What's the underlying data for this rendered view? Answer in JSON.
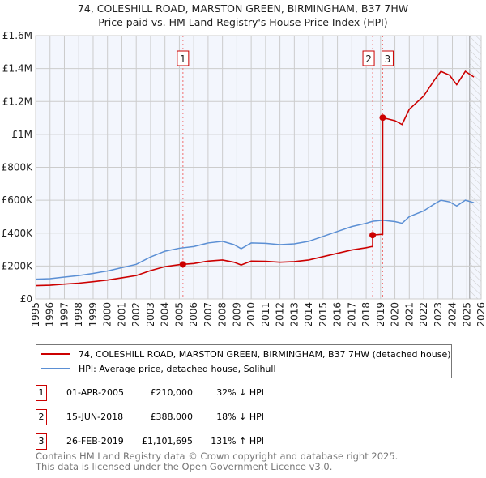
{
  "title": "74, COLESHILL ROAD, MARSTON GREEN, BIRMINGHAM, B37 7HW",
  "subtitle": "Price paid vs. HM Land Registry's House Price Index (HPI)",
  "chart_data": {
    "type": "line",
    "xlim": [
      1995,
      2026
    ],
    "ylim": [
      0,
      1600000
    ],
    "yticks": [
      {
        "v": 0,
        "l": "£0"
      },
      {
        "v": 200000,
        "l": "£200K"
      },
      {
        "v": 400000,
        "l": "£400K"
      },
      {
        "v": 600000,
        "l": "£600K"
      },
      {
        "v": 800000,
        "l": "£800K"
      },
      {
        "v": 1000000,
        "l": "£1M"
      },
      {
        "v": 1200000,
        "l": "£1.2M"
      },
      {
        "v": 1400000,
        "l": "£1.4M"
      },
      {
        "v": 1600000,
        "l": "£1.6M"
      }
    ],
    "xticks": [
      "1995",
      "1996",
      "1997",
      "1998",
      "1999",
      "2000",
      "2001",
      "2002",
      "2003",
      "2004",
      "2005",
      "2006",
      "2007",
      "2008",
      "2009",
      "2010",
      "2011",
      "2012",
      "2013",
      "2014",
      "2015",
      "2016",
      "2017",
      "2018",
      "2019",
      "2020",
      "2021",
      "2022",
      "2023",
      "2024",
      "2025",
      "2026"
    ],
    "hatch_from": 2025.2,
    "hpi_color": "#5b8fd4",
    "price_color": "#cc0000",
    "hpi": [
      [
        1995,
        120000
      ],
      [
        1996,
        123000
      ],
      [
        1997,
        133000
      ],
      [
        1998,
        142000
      ],
      [
        1999,
        155000
      ],
      [
        2000,
        170000
      ],
      [
        2001,
        190000
      ],
      [
        2002,
        210000
      ],
      [
        2003,
        255000
      ],
      [
        2004,
        290000
      ],
      [
        2005,
        308000
      ],
      [
        2006,
        318000
      ],
      [
        2007,
        340000
      ],
      [
        2008,
        350000
      ],
      [
        2008.8,
        330000
      ],
      [
        2009.3,
        305000
      ],
      [
        2010,
        340000
      ],
      [
        2011,
        338000
      ],
      [
        2012,
        330000
      ],
      [
        2013,
        335000
      ],
      [
        2014,
        350000
      ],
      [
        2015,
        380000
      ],
      [
        2016,
        410000
      ],
      [
        2017,
        440000
      ],
      [
        2018,
        460000
      ],
      [
        2018.45,
        472000
      ],
      [
        2019.15,
        478000
      ],
      [
        2020,
        470000
      ],
      [
        2020.5,
        460000
      ],
      [
        2021,
        500000
      ],
      [
        2022,
        535000
      ],
      [
        2022.8,
        580000
      ],
      [
        2023.2,
        600000
      ],
      [
        2023.8,
        590000
      ],
      [
        2024.3,
        565000
      ],
      [
        2024.9,
        600000
      ],
      [
        2025.5,
        585000
      ]
    ],
    "sales": [
      {
        "x": 2005.25,
        "y": 210000,
        "n": "1"
      },
      {
        "x": 2018.45,
        "y": 388000,
        "n": "2"
      },
      {
        "x": 2019.15,
        "y": 1101695,
        "n": "3"
      }
    ]
  },
  "legend": {
    "price": "74, COLESHILL ROAD, MARSTON GREEN, BIRMINGHAM, B37 7HW (detached house)",
    "hpi": "HPI: Average price, detached house, Solihull"
  },
  "transactions": [
    {
      "n": "1",
      "date": "01-APR-2005",
      "price": "£210,000",
      "hpi": "32% ↓ HPI"
    },
    {
      "n": "2",
      "date": "15-JUN-2018",
      "price": "£388,000",
      "hpi": "18% ↓ HPI"
    },
    {
      "n": "3",
      "date": "26-FEB-2019",
      "price": "£1,101,695",
      "hpi": "131% ↑ HPI"
    }
  ],
  "footer": [
    "Contains HM Land Registry data © Crown copyright and database right 2025.",
    "This data is licensed under the Open Government Licence v3.0."
  ]
}
